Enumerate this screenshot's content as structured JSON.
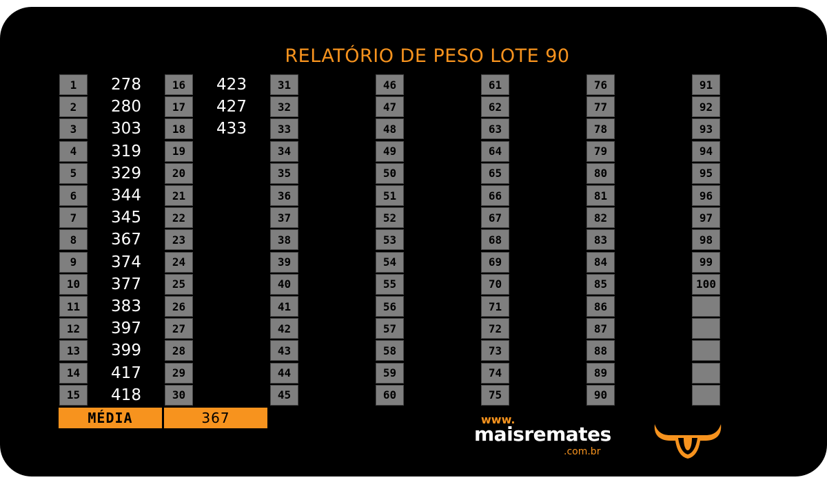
{
  "title": "RELATÓRIO DE PESO LOTE  90",
  "weights": [
    "278",
    "280",
    "303",
    "319",
    "329",
    "344",
    "345",
    "367",
    "374",
    "377",
    "383",
    "397",
    "399",
    "417",
    "418",
    "423",
    "427",
    "433"
  ],
  "summary": {
    "label": "MÉDIA",
    "value": "367"
  },
  "logo": {
    "www": "www.",
    "name": "maisremates",
    "domain": ".com.br",
    "icon": "bull-head-icon"
  },
  "colors": {
    "accent": "#f7931e",
    "cell": "#7f7f7f",
    "background": "#000000"
  }
}
